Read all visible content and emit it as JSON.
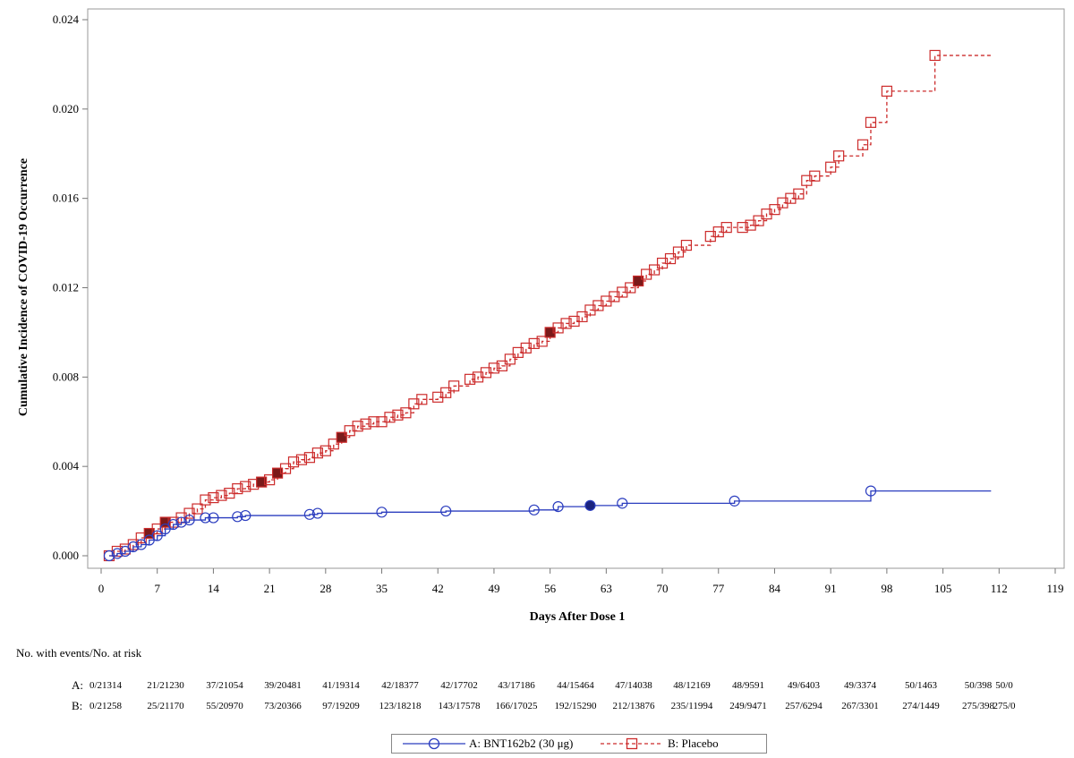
{
  "chart_data": {
    "type": "line",
    "xlabel": "Days After Dose 1",
    "ylabel": "Cumulative Incidence of COVID-19 Occurrence",
    "xlim": [
      0,
      119
    ],
    "ylim": [
      0,
      0.024
    ],
    "xticks": [
      "0",
      "7",
      "14",
      "21",
      "28",
      "35",
      "42",
      "49",
      "56",
      "63",
      "70",
      "77",
      "84",
      "91",
      "98",
      "105",
      "112",
      "119"
    ],
    "yticks": [
      "0.000",
      "0.004",
      "0.008",
      "0.012",
      "0.016",
      "0.020",
      "0.024"
    ],
    "series": [
      {
        "name": "A: BNT162b2 (30 μg)",
        "color": "#2b3dbf",
        "style": "solid",
        "marker": "circle",
        "end_x": 111,
        "points": [
          [
            1,
            0.0
          ],
          [
            2,
            0.0001
          ],
          [
            3,
            0.0002
          ],
          [
            4,
            0.0004
          ],
          [
            5,
            0.0005
          ],
          [
            6,
            0.0007
          ],
          [
            7,
            0.0009
          ],
          [
            8,
            0.0012
          ],
          [
            9,
            0.0014
          ],
          [
            10,
            0.0015
          ],
          [
            11,
            0.0016
          ],
          [
            13,
            0.0017
          ],
          [
            14,
            0.0017
          ],
          [
            17,
            0.00175
          ],
          [
            18,
            0.0018
          ],
          [
            26,
            0.00185
          ],
          [
            27,
            0.0019
          ],
          [
            35,
            0.00195
          ],
          [
            43,
            0.002
          ],
          [
            54,
            0.00205
          ],
          [
            57,
            0.0022
          ],
          [
            61,
            0.00225
          ],
          [
            65,
            0.00235
          ],
          [
            79,
            0.00245
          ],
          [
            96,
            0.0029
          ]
        ],
        "highlight_x": [
          61
        ]
      },
      {
        "name": "B: Placebo",
        "color": "#cc2b2b",
        "style": "dashed",
        "marker": "square",
        "end_x": 111,
        "points": [
          [
            1,
            0.0
          ],
          [
            2,
            0.0002
          ],
          [
            3,
            0.0003
          ],
          [
            4,
            0.0005
          ],
          [
            5,
            0.0008
          ],
          [
            6,
            0.001
          ],
          [
            7,
            0.0012
          ],
          [
            8,
            0.0015
          ],
          [
            9,
            0.0015
          ],
          [
            10,
            0.0017
          ],
          [
            11,
            0.0019
          ],
          [
            12,
            0.0021
          ],
          [
            13,
            0.0025
          ],
          [
            14,
            0.0026
          ],
          [
            15,
            0.0027
          ],
          [
            16,
            0.0028
          ],
          [
            17,
            0.003
          ],
          [
            18,
            0.0031
          ],
          [
            19,
            0.0032
          ],
          [
            20,
            0.0033
          ],
          [
            21,
            0.0034
          ],
          [
            22,
            0.0037
          ],
          [
            23,
            0.0039
          ],
          [
            24,
            0.0042
          ],
          [
            25,
            0.0043
          ],
          [
            26,
            0.0044
          ],
          [
            27,
            0.0046
          ],
          [
            28,
            0.0047
          ],
          [
            29,
            0.005
          ],
          [
            30,
            0.0053
          ],
          [
            31,
            0.0056
          ],
          [
            32,
            0.0058
          ],
          [
            33,
            0.0059
          ],
          [
            34,
            0.006
          ],
          [
            35,
            0.006
          ],
          [
            36,
            0.0062
          ],
          [
            37,
            0.0063
          ],
          [
            38,
            0.0064
          ],
          [
            39,
            0.0068
          ],
          [
            40,
            0.007
          ],
          [
            42,
            0.0071
          ],
          [
            43,
            0.0073
          ],
          [
            44,
            0.0076
          ],
          [
            46,
            0.0079
          ],
          [
            47,
            0.008
          ],
          [
            48,
            0.0082
          ],
          [
            49,
            0.0084
          ],
          [
            50,
            0.0085
          ],
          [
            51,
            0.0088
          ],
          [
            52,
            0.0091
          ],
          [
            53,
            0.0093
          ],
          [
            54,
            0.0095
          ],
          [
            55,
            0.0096
          ],
          [
            56,
            0.01
          ],
          [
            57,
            0.0102
          ],
          [
            58,
            0.0104
          ],
          [
            59,
            0.0105
          ],
          [
            60,
            0.0107
          ],
          [
            61,
            0.011
          ],
          [
            62,
            0.0112
          ],
          [
            63,
            0.0114
          ],
          [
            64,
            0.0116
          ],
          [
            65,
            0.0118
          ],
          [
            66,
            0.012
          ],
          [
            67,
            0.0123
          ],
          [
            68,
            0.0126
          ],
          [
            69,
            0.0128
          ],
          [
            70,
            0.0131
          ],
          [
            71,
            0.0133
          ],
          [
            72,
            0.0136
          ],
          [
            73,
            0.0139
          ],
          [
            76,
            0.0143
          ],
          [
            77,
            0.0145
          ],
          [
            78,
            0.0147
          ],
          [
            80,
            0.0147
          ],
          [
            81,
            0.0148
          ],
          [
            82,
            0.015
          ],
          [
            83,
            0.0153
          ],
          [
            84,
            0.0155
          ],
          [
            85,
            0.0158
          ],
          [
            86,
            0.016
          ],
          [
            87,
            0.0162
          ],
          [
            88,
            0.0168
          ],
          [
            89,
            0.017
          ],
          [
            91,
            0.0174
          ],
          [
            92,
            0.0179
          ],
          [
            95,
            0.0184
          ],
          [
            96,
            0.0194
          ],
          [
            98,
            0.0208
          ],
          [
            104,
            0.0224
          ]
        ],
        "highlight_x": [
          6,
          8,
          20,
          22,
          30,
          56,
          67
        ]
      }
    ]
  },
  "risk_table": {
    "title": "No. with events/No. at risk",
    "rows": [
      {
        "label": "A:",
        "values": [
          "0/21314",
          "21/21230",
          "37/21054",
          "39/20481",
          "41/19314",
          "42/18377",
          "42/17702",
          "43/17186",
          "44/15464",
          "47/14038",
          "48/12169",
          "48/9591",
          "49/6403",
          "49/3374",
          "50/1463",
          "50/398",
          "50/0"
        ]
      },
      {
        "label": "B:",
        "values": [
          "0/21258",
          "25/21170",
          "55/20970",
          "73/20366",
          "97/19209",
          "123/18218",
          "143/17578",
          "166/17025",
          "192/15290",
          "212/13876",
          "235/11994",
          "249/9471",
          "257/6294",
          "267/3301",
          "274/1449",
          "275/398",
          "275/0"
        ]
      }
    ]
  },
  "legend": {
    "a_label": "A: BNT162b2 (30 μg)",
    "b_label": "B: Placebo"
  }
}
